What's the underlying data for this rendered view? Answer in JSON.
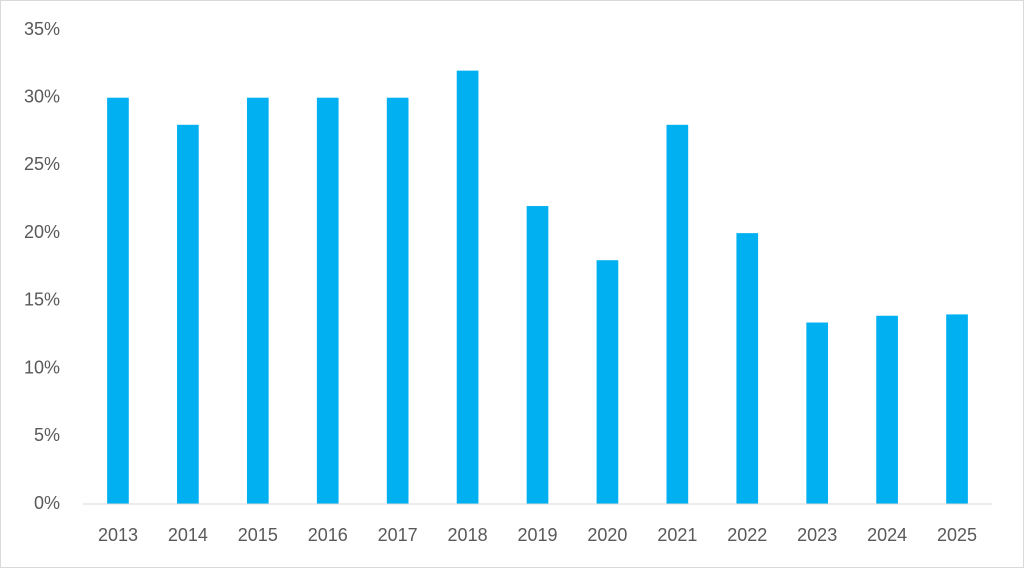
{
  "chart_data": {
    "type": "bar",
    "categories": [
      "2013",
      "2014",
      "2015",
      "2016",
      "2017",
      "2018",
      "2019",
      "2020",
      "2021",
      "2022",
      "2023",
      "2024",
      "2025"
    ],
    "values": [
      30,
      28,
      30,
      30,
      30,
      32,
      22,
      18,
      28,
      20,
      13.4,
      13.9,
      14
    ],
    "color": "#00b0f0",
    "ylim": [
      0,
      35
    ],
    "yticks": [
      {
        "value": 0,
        "label": "0%"
      },
      {
        "value": 5,
        "label": "5%"
      },
      {
        "value": 10,
        "label": "10%"
      },
      {
        "value": 15,
        "label": "15%"
      },
      {
        "value": 20,
        "label": "20%"
      },
      {
        "value": 25,
        "label": "25%"
      },
      {
        "value": 30,
        "label": "30%"
      },
      {
        "value": 35,
        "label": "35%"
      }
    ],
    "grid": false
  }
}
